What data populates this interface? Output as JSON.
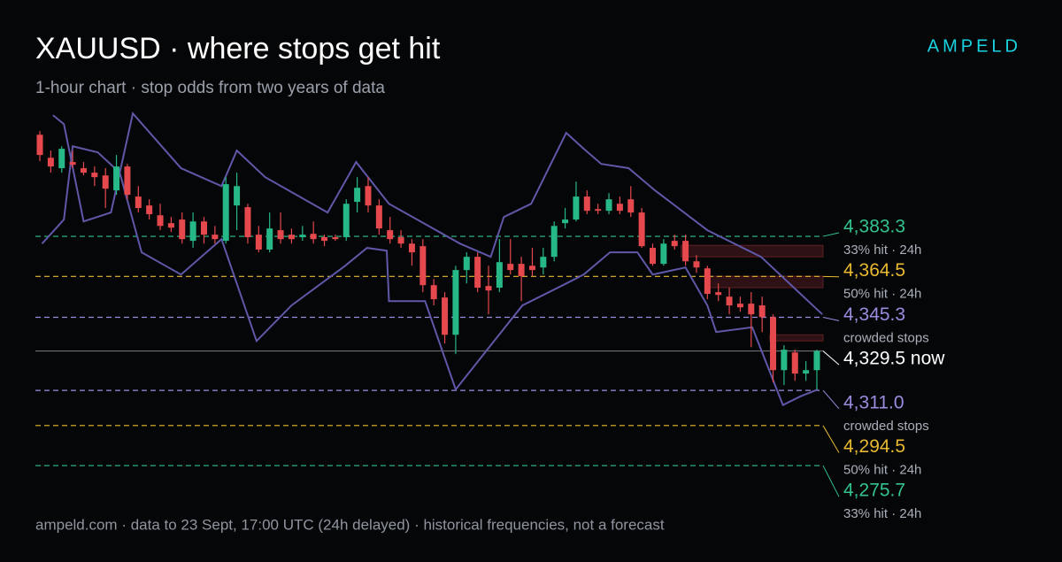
{
  "chart_data": {
    "type": "candlestick",
    "title": "XAUUSD · where stops get hit",
    "subtitle": "1-hour chart · stop odds from two years of data",
    "brand": "AMPELD",
    "footer": "ampeld.com · data to 23 Sept, 17:00 UTC (24h delayed) · historical frequencies, not a forecast",
    "ylim": [
      4261.6,
      4444.4
    ],
    "up_color": "#26b886",
    "down_color": "#e5484d",
    "open": [
      4431.0,
      4420.2,
      4415.3,
      4418.2,
      4415.3,
      4413.2,
      4411.9,
      4404.9,
      4416.1,
      4402.0,
      4397.8,
      4393.2,
      4389.5,
      4391.2,
      4381.2,
      4390.3,
      4384.1,
      4381.2,
      4397.8,
      4397.0,
      4384.1,
      4377.1,
      4386.2,
      4384.1,
      4382.9,
      4384.5,
      4382.9,
      4382.9,
      4382.9,
      4399.5,
      4406.9,
      4397.8,
      4386.2,
      4382.9,
      4379.9,
      4378.7,
      4360.4,
      4354.6,
      4337.1,
      4367.5,
      4373.7,
      4360.0,
      4359.2,
      4370.4,
      4370.4,
      4369.5,
      4368.7,
      4373.7,
      4389.5,
      4391.2,
      4402.0,
      4396.1,
      4395.3,
      4398.6,
      4400.7,
      4394.5,
      4377.9,
      4370.4,
      4381.2,
      4381.2,
      4371.6,
      4368.3,
      4357.1,
      4355.0,
      4351.7,
      4351.7,
      4350.9,
      4345.4,
      4320.5,
      4328.8,
      4318.9,
      4320.5
    ],
    "high": [
      4432.7,
      4423.6,
      4425.6,
      4423.6,
      4418.2,
      4416.1,
      4415.3,
      4421.5,
      4417.3,
      4406.9,
      4400.7,
      4398.6,
      4392.4,
      4394.5,
      4394.5,
      4392.4,
      4388.2,
      4411.1,
      4413.2,
      4398.6,
      4388.2,
      4394.5,
      4394.5,
      4387.0,
      4388.2,
      4390.3,
      4384.1,
      4384.1,
      4400.7,
      4411.1,
      4411.1,
      4400.7,
      4392.4,
      4386.2,
      4382.0,
      4382.0,
      4363.3,
      4357.1,
      4369.5,
      4375.8,
      4375.8,
      4369.5,
      4382.0,
      4382.0,
      4373.7,
      4377.9,
      4377.9,
      4390.3,
      4396.6,
      4409.0,
      4404.9,
      4398.6,
      4403.6,
      4402.0,
      4406.9,
      4396.6,
      4379.9,
      4382.0,
      4384.1,
      4384.1,
      4374.5,
      4369.5,
      4361.2,
      4359.2,
      4355.0,
      4357.1,
      4355.0,
      4346.7,
      4332.2,
      4330.1,
      4324.7,
      4330.1
    ],
    "low": [
      4418.6,
      4413.2,
      4413.2,
      4415.3,
      4411.9,
      4406.9,
      4396.6,
      4402.8,
      4400.7,
      4394.5,
      4391.2,
      4386.2,
      4385.3,
      4379.9,
      4377.9,
      4379.9,
      4379.9,
      4379.9,
      4386.2,
      4379.9,
      4375.8,
      4375.8,
      4379.9,
      4379.9,
      4381.2,
      4379.9,
      4378.7,
      4381.2,
      4381.2,
      4394.5,
      4394.5,
      4384.1,
      4379.9,
      4377.9,
      4369.5,
      4357.1,
      4350.9,
      4333.0,
      4328.0,
      4361.2,
      4357.1,
      4346.7,
      4357.1,
      4365.4,
      4352.9,
      4364.6,
      4365.4,
      4371.6,
      4387.0,
      4390.3,
      4393.7,
      4393.7,
      4393.7,
      4393.7,
      4392.4,
      4377.9,
      4369.5,
      4369.5,
      4377.1,
      4369.5,
      4366.2,
      4353.8,
      4352.9,
      4346.7,
      4347.9,
      4331.3,
      4338.4,
      4314.7,
      4313.5,
      4315.5,
      4315.5,
      4311.4
    ],
    "close": [
      4421.5,
      4416.1,
      4424.4,
      4416.9,
      4413.2,
      4411.1,
      4405.7,
      4416.1,
      4402.8,
      4396.6,
      4393.7,
      4388.2,
      4387.4,
      4382.0,
      4390.3,
      4384.1,
      4382.0,
      4407.8,
      4406.9,
      4382.9,
      4377.1,
      4387.0,
      4382.0,
      4382.0,
      4384.1,
      4382.0,
      4381.2,
      4382.0,
      4398.6,
      4406.1,
      4397.8,
      4387.0,
      4382.0,
      4379.9,
      4375.8,
      4360.4,
      4353.8,
      4337.1,
      4367.5,
      4373.7,
      4359.2,
      4357.9,
      4371.2,
      4367.5,
      4364.6,
      4367.5,
      4373.7,
      4388.2,
      4391.2,
      4402.0,
      4395.3,
      4395.3,
      4400.7,
      4395.3,
      4394.5,
      4378.7,
      4370.4,
      4379.9,
      4378.7,
      4371.6,
      4368.7,
      4356.3,
      4355.8,
      4350.9,
      4350.0,
      4346.7,
      4345.4,
      4320.5,
      4330.1,
      4318.9,
      4320.5,
      4329.5
    ],
    "bands": [
      {
        "color": "#5f58a8",
        "x": [
          1.2,
          2.2,
          4.0,
          6.5,
          8.5,
          12.9,
          16.6,
          18.0,
          20.6,
          26.3,
          28.9,
          31.9,
          38.4,
          41.2,
          42.4,
          44.9,
          48.1,
          49.7,
          51.3,
          53.8,
          56.2,
          61.0,
          65.9,
          71.5
        ],
        "values": [
          4440.2,
          4436.0,
          4390.3,
          4394.5,
          4441.0,
          4415.3,
          4406.9,
          4423.6,
          4411.1,
          4394.5,
          4418.2,
          4398.6,
          4379.9,
          4373.7,
          4392.4,
          4398.6,
          4431.9,
          4424.4,
          4417.3,
          4415.3,
          4404.9,
          4386.2,
          4373.7,
          4346.7
        ]
      },
      {
        "color": "#5f58a8",
        "x": [
          0.2,
          2.2,
          3.0,
          5.3,
          7.3,
          9.3,
          12.9,
          16.6,
          19.8,
          23.0,
          27.9,
          29.9,
          31.7,
          31.9,
          35.2,
          38.0,
          41.2,
          44.1,
          48.1,
          49.7,
          52.1,
          54.6,
          56.0,
          59.0,
          61.0,
          61.8,
          65.1,
          67.9,
          69.5,
          71.1
        ],
        "values": [
          4379.9,
          4391.2,
          4425.6,
          4422.7,
          4413.2,
          4375.8,
          4365.4,
          4382.0,
          4334.2,
          4350.9,
          4369.5,
          4377.9,
          4376.6,
          4352.9,
          4352.9,
          4311.4,
          4332.2,
          4350.9,
          4361.2,
          4365.4,
          4375.8,
          4375.8,
          4365.4,
          4368.7,
          4350.9,
          4338.4,
          4340.6,
          4304.1,
          4308.2,
          4311.4
        ]
      }
    ],
    "zones": [
      {
        "from": 4373.7,
        "to": 4379.1,
        "start": 58.6
      },
      {
        "from": 4359.2,
        "to": 4364.6,
        "start": 61.0
      },
      {
        "from": 4334.2,
        "to": 4337.1,
        "start": 66.7
      }
    ],
    "zone_color": "#e5484d",
    "levels": [
      {
        "value": 4383.3,
        "label": "4,383.3",
        "note": "33% hit · 24h",
        "color": "#34c38f",
        "style": "dashed"
      },
      {
        "value": 4364.5,
        "label": "4,364.5",
        "note": "50% hit · 24h",
        "color": "#e8b931",
        "style": "dashed"
      },
      {
        "value": 4345.3,
        "label": "4,345.3",
        "note": "crowded stops",
        "color": "#9b8ce0",
        "style": "dashed"
      },
      {
        "value": 4329.5,
        "label": "4,329.5 now",
        "color": "#6b6f78",
        "label_color": "#ffffff",
        "style": "solid"
      },
      {
        "value": 4311.0,
        "label": "4,311.0",
        "note": "crowded stops",
        "color": "#9b8ce0",
        "style": "dashed"
      },
      {
        "value": 4294.5,
        "label": "4,294.5",
        "note": "50% hit · 24h",
        "color": "#e8b931",
        "style": "dashed"
      },
      {
        "value": 4275.7,
        "label": "4,275.7",
        "note": "33% hit · 24h",
        "color": "#34c38f",
        "style": "dashed"
      }
    ]
  }
}
